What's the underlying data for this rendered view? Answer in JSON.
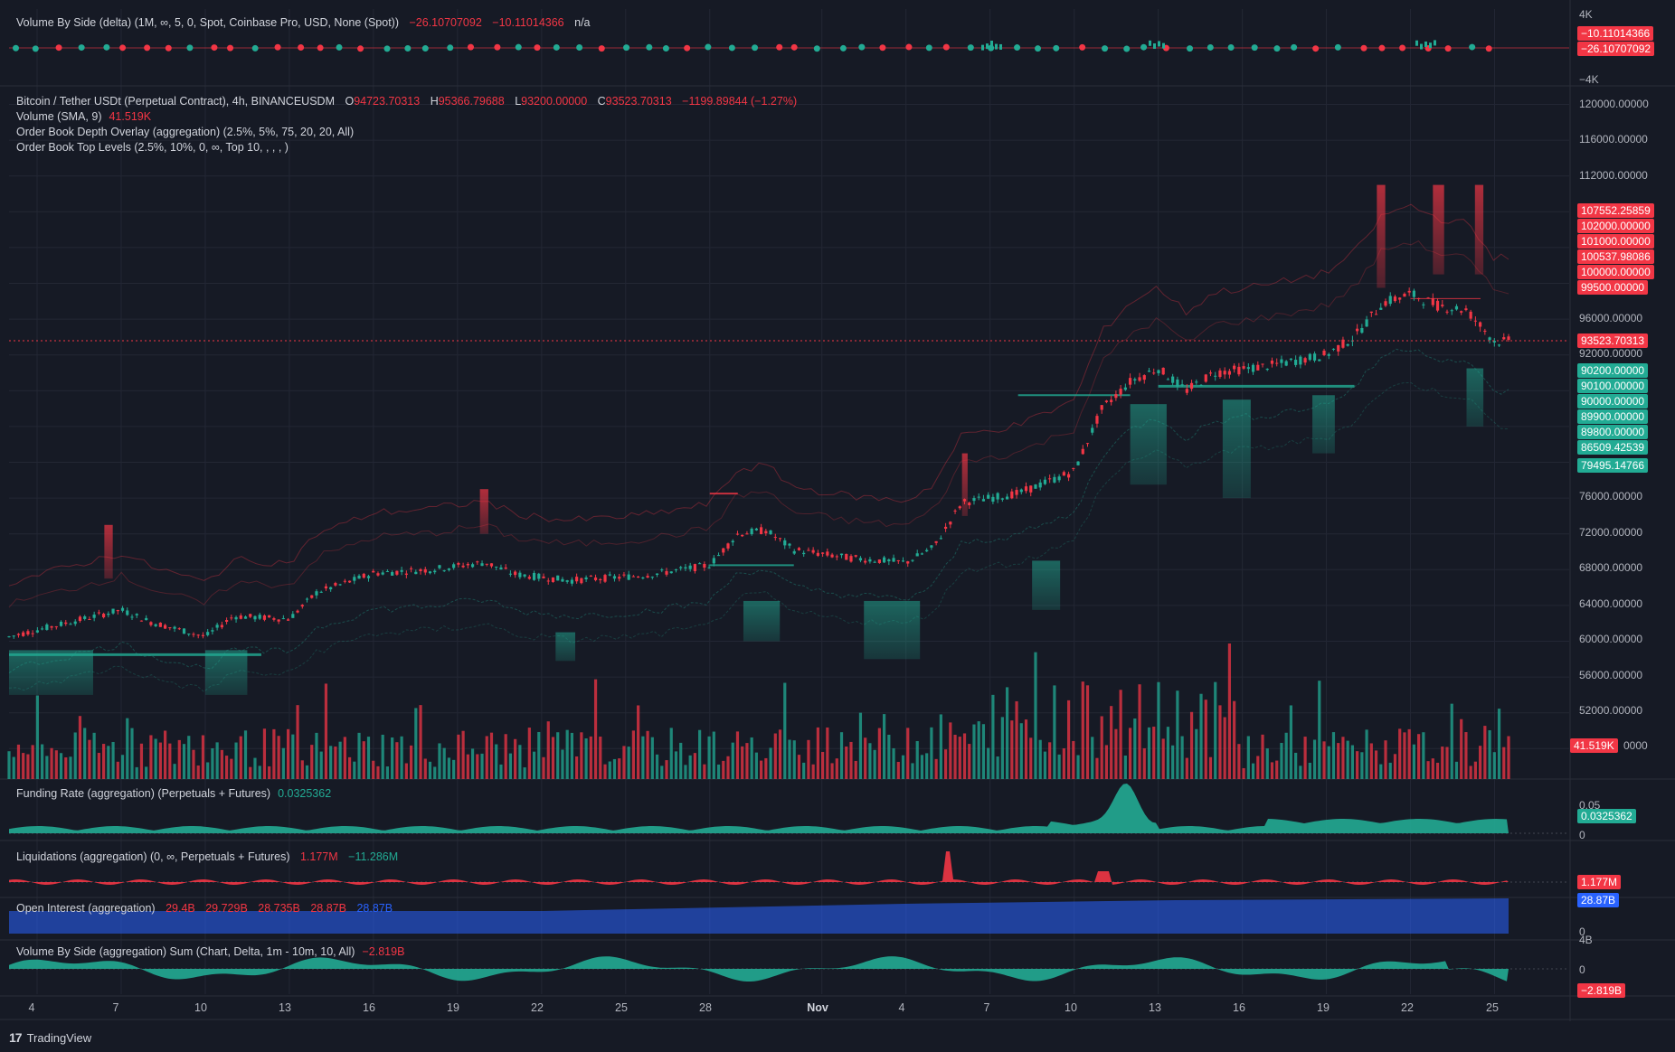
{
  "colors": {
    "background": "#161a25",
    "up": "#22ab94",
    "down": "#f23645",
    "oi": "#2962ff",
    "grid": "#232734",
    "text": "#b2b5be"
  },
  "delta_panel": {
    "title": "Volume By Side (delta) (1M, ∞, 5, 0, Spot, Coinbase Pro, USD, None (Spot))",
    "v1": "−26.10707092",
    "v2": "−10.11014366",
    "v3": "n/a",
    "axis_top": "4K",
    "axis_bottom": "−4K",
    "tag1": "−10.11014366",
    "tag2": "−26.10707092"
  },
  "main_legend": {
    "symbol": "Bitcoin / Tether USDt (Perpetual Contract), 4h, BINANCEUSDM",
    "o_label": "O",
    "o": "94723.70313",
    "h_label": "H",
    "h": "95366.79688",
    "l_label": "L",
    "l": "93200.00000",
    "c_label": "C",
    "c": "93523.70313",
    "change": "−1199.89844 (−1.27%)",
    "volume_label": "Volume (SMA, 9)",
    "volume_value": "41.519K",
    "overlay1": "Order Book Depth Overlay (aggregation) (2.5%, 5%, 75, 20, 20, All)",
    "overlay2": "Order Book Top Levels (2.5%, 10%, 0, ∞, Top 10, , , , )"
  },
  "price_axis": [
    "120000.00000",
    "116000.00000",
    "112000.00000",
    "96000.00000",
    "92000.00000",
    "76000.00000",
    "72000.00000",
    "68000.00000",
    "64000.00000",
    "60000.00000",
    "56000.00000",
    "52000.00000",
    "0000"
  ],
  "price_tags_red": [
    "107552.25859",
    "102000.00000",
    "101000.00000",
    "100537.98086",
    "100000.00000",
    "99500.00000"
  ],
  "price_tag_current": "93523.70313",
  "price_tags_teal": [
    "90200.00000",
    "90100.00000",
    "90000.00000",
    "89900.00000",
    "89800.00000",
    "86509.42539",
    "79495.14766"
  ],
  "volume_tag": "41.519K",
  "funding": {
    "title": "Funding Rate (aggregation) (Perpetuals + Futures)",
    "value": "0.0325362",
    "axis_top": "0.05",
    "axis_zero": "0",
    "tag": "0.0325362"
  },
  "liquidations": {
    "title": "Liquidations (aggregation) (0, ∞, Perpetuals + Futures)",
    "v1": "1.177M",
    "v2": "−11.286M",
    "tag": "1.177M"
  },
  "open_interest": {
    "title": "Open Interest (aggregation)",
    "v1": "29.4B",
    "v2": "29.729B",
    "v3": "28.735B",
    "v4": "28.87B",
    "v5": "28.87B",
    "tag": "28.87B",
    "axis_zero": "0"
  },
  "vbs_sum": {
    "title": "Volume By Side (aggregation) Sum (Chart, Delta, 1m - 10m, 10, All)",
    "value": "−2.819B",
    "axis_top": "4B",
    "axis_zero": "0",
    "tag": "−2.819B"
  },
  "x_axis": [
    "4",
    "7",
    "10",
    "13",
    "16",
    "19",
    "22",
    "25",
    "28",
    "Nov",
    "4",
    "7",
    "10",
    "13",
    "16",
    "19",
    "22",
    "25"
  ],
  "brand": {
    "logo": "17",
    "name": "TradingView"
  },
  "chart_data": {
    "type": "candlestick",
    "symbol": "BTCUSDT.P",
    "interval": "4h",
    "x_start": "Oct 3",
    "x_end": "Nov 25",
    "ylim": [
      45000,
      124000
    ],
    "price_path": [
      [
        "Oct 3",
        60500
      ],
      [
        "Oct 5",
        62000
      ],
      [
        "Oct 7",
        63500
      ],
      [
        "Oct 8",
        62200
      ],
      [
        "Oct 10",
        60500
      ],
      [
        "Oct 11",
        62800
      ],
      [
        "Oct 13",
        62500
      ],
      [
        "Oct 14",
        65500
      ],
      [
        "Oct 15",
        66500
      ],
      [
        "Oct 16",
        67600
      ],
      [
        "Oct 18",
        68000
      ],
      [
        "Oct 20",
        68800
      ],
      [
        "Oct 21",
        67500
      ],
      [
        "Oct 23",
        66800
      ],
      [
        "Oct 25",
        67200
      ],
      [
        "Oct 26",
        67500
      ],
      [
        "Oct 28",
        68500
      ],
      [
        "Oct 29",
        72000
      ],
      [
        "Oct 30",
        72400
      ],
      [
        "Oct 31",
        70200
      ],
      [
        "Nov 2",
        69300
      ],
      [
        "Nov 4",
        68800
      ],
      [
        "Nov 5",
        70500
      ],
      [
        "Nov 6",
        75500
      ],
      [
        "Nov 8",
        76500
      ],
      [
        "Nov 10",
        79000
      ],
      [
        "Nov 11",
        86000
      ],
      [
        "Nov 12",
        89000
      ],
      [
        "Nov 13",
        90500
      ],
      [
        "Nov 14",
        88000
      ],
      [
        "Nov 15",
        90000
      ],
      [
        "Nov 17",
        90800
      ],
      [
        "Nov 19",
        92000
      ],
      [
        "Nov 20",
        94000
      ],
      [
        "Nov 21",
        97800
      ],
      [
        "Nov 22",
        98800
      ],
      [
        "Nov 23",
        97500
      ],
      [
        "Nov 24",
        97000
      ],
      [
        "Nov 25",
        93523.70313
      ]
    ]
  }
}
